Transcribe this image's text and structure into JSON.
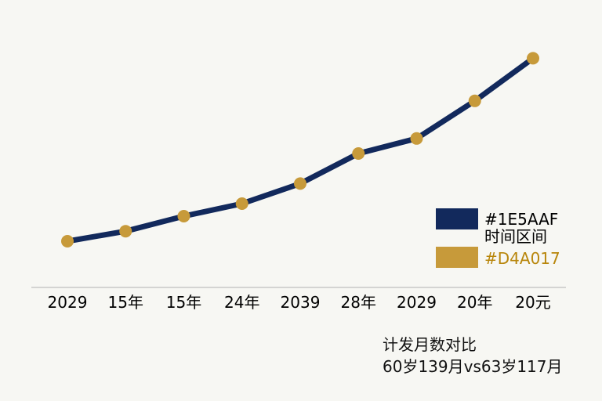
{
  "chart_data": {
    "type": "line",
    "title": "",
    "xlabel": "",
    "ylabel": "",
    "categories": [
      "2029",
      "15年",
      "15年",
      "24年",
      "2039",
      "28年",
      "2029",
      "20年",
      "20元"
    ],
    "series": [
      {
        "name": "#1E5AAF",
        "values": [
          10,
          14,
          20,
          25,
          33,
          45,
          51,
          66,
          83
        ],
        "color": "#12295c",
        "line": true
      },
      {
        "name": "#D4A017",
        "values": [
          10,
          14,
          20,
          25,
          33,
          45,
          51,
          66,
          83
        ],
        "color": "#c79a3a",
        "line": false
      }
    ],
    "ylim": [
      0,
      100
    ],
    "grid": false,
    "legend": "right",
    "legend_middle_text": "时间区间",
    "annotations": [
      "计发月数对比",
      "60岁139月vs63岁117月"
    ]
  }
}
